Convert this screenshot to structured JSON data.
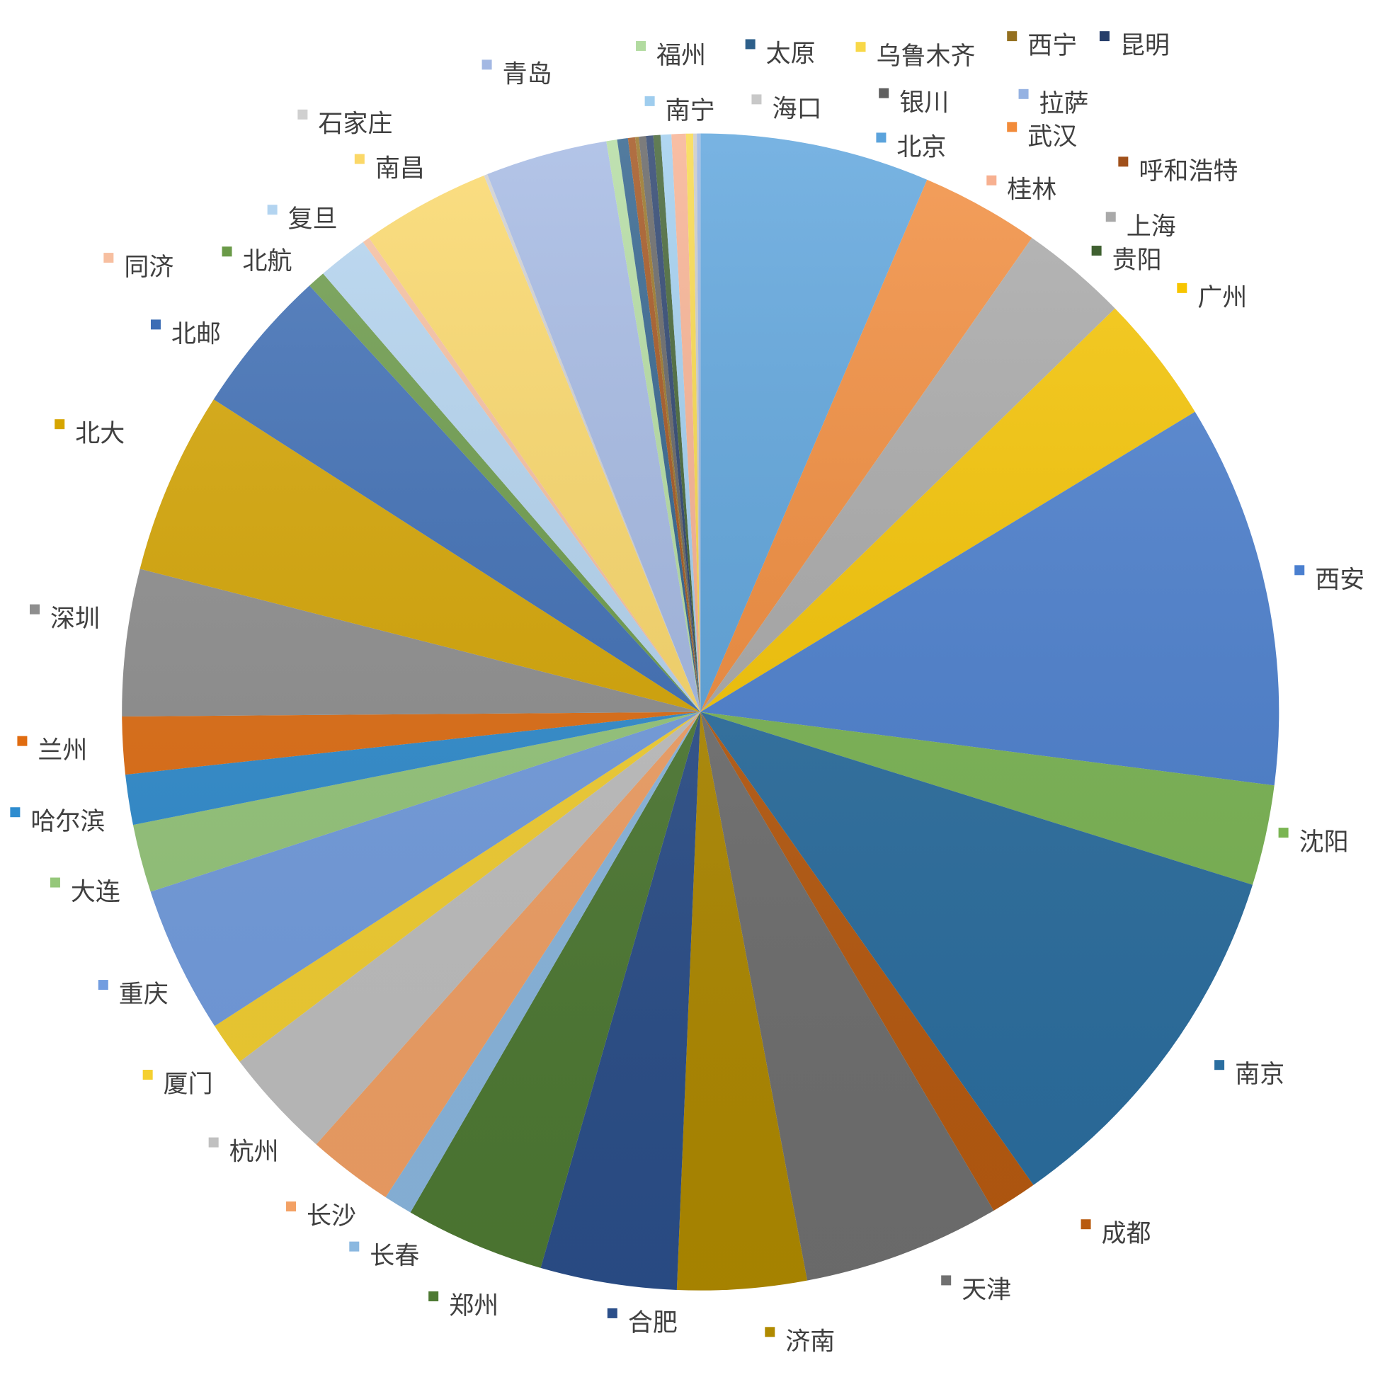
{
  "chart_data": {
    "type": "pie",
    "categories": [
      "北京",
      "武汉",
      "上海",
      "广州",
      "西安",
      "沈阳",
      "南京",
      "成都",
      "天津",
      "济南",
      "合肥",
      "郑州",
      "长春",
      "长沙",
      "杭州",
      "厦门",
      "重庆",
      "大连",
      "哈尔滨",
      "兰州",
      "深圳",
      "北大",
      "北邮",
      "北航",
      "复旦",
      "同济",
      "南昌",
      "石家庄",
      "青岛",
      "福州",
      "太原",
      "呼和浩特",
      "西宁",
      "银川",
      "昆明",
      "贵阳",
      "南宁",
      "桂林",
      "乌鲁木齐",
      "海口",
      "拉萨"
    ],
    "values": [
      6.4,
      3.3,
      3.0,
      3.6,
      10.7,
      2.8,
      10.4,
      1.3,
      5.5,
      3.6,
      3.8,
      3.9,
      0.8,
      2.4,
      3.1,
      1.2,
      4.1,
      1.9,
      1.4,
      1.6,
      4.1,
      5.1,
      4.1,
      0.5,
      1.4,
      0.2,
      3.6,
      0.1,
      3.4,
      0.3,
      0.3,
      0.2,
      0.1,
      0.2,
      0.2,
      0.2,
      0.3,
      0.4,
      0.2,
      0.1,
      0.1
    ],
    "colors": [
      "#5ba3dc",
      "#f28b3a",
      "#a9a9a9",
      "#f7c500",
      "#4a7fcf",
      "#7ab552",
      "#2a6ea0",
      "#b85a0f",
      "#707070",
      "#b08a00",
      "#2b4f8a",
      "#4e7a33",
      "#8bb8e0",
      "#f3a165",
      "#c0c0c0",
      "#f5d030",
      "#729de0",
      "#95c77a",
      "#2e8ccf",
      "#e06c10",
      "#8e8e8e",
      "#d6a500",
      "#3c6db5",
      "#6a9a48",
      "#b3d4f0",
      "#f7bfa0",
      "#fbd868",
      "#d0d0d0",
      "#a3b8e3",
      "#b2dba0",
      "#2d5f8a",
      "#a0501a",
      "#947020",
      "#606060",
      "#263e6a",
      "#3f6030",
      "#9fcdee",
      "#f7b090",
      "#f8d848",
      "#c8c8c8",
      "#95b2e2"
    ]
  }
}
